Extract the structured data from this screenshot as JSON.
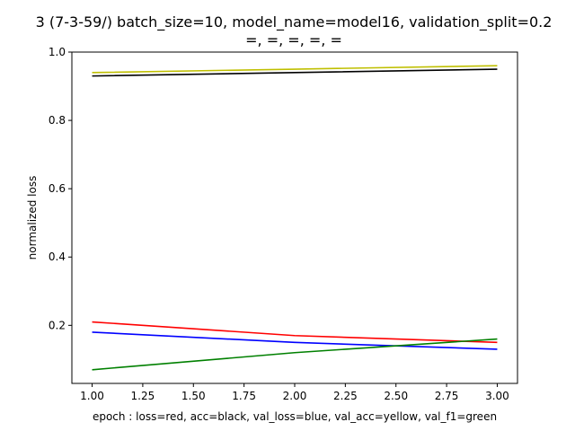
{
  "chart_data": {
    "type": "line",
    "title": "3 (7-3-59/) batch_size=10, model_name=model16, validation_split=0.2",
    "subtitle": "=, =, =, =, =",
    "xlabel": "epoch : loss=red, acc=black, val_loss=blue, val_acc=yellow, val_f1=green",
    "ylabel": "normalized loss",
    "xlim": [
      0.9,
      3.1
    ],
    "ylim": [
      0.03,
      1.0
    ],
    "x_ticks": [
      "1.00",
      "1.25",
      "1.50",
      "1.75",
      "2.00",
      "2.25",
      "2.50",
      "2.75",
      "3.00"
    ],
    "y_ticks": [
      "0.2",
      "0.4",
      "0.6",
      "0.8",
      "1.0"
    ],
    "grid": false,
    "x": [
      1,
      2,
      3
    ],
    "series": [
      {
        "key": "loss",
        "color": "#ff0000",
        "values": [
          0.21,
          0.17,
          0.15
        ]
      },
      {
        "key": "acc",
        "color": "#000000",
        "values": [
          0.93,
          0.94,
          0.95
        ]
      },
      {
        "key": "val_loss",
        "color": "#0000ff",
        "values": [
          0.18,
          0.15,
          0.13
        ]
      },
      {
        "key": "val_acc",
        "color": "#bfbf00",
        "values": [
          0.94,
          0.95,
          0.96
        ]
      },
      {
        "key": "val_f1",
        "color": "#008000",
        "values": [
          0.07,
          0.12,
          0.16
        ]
      }
    ]
  }
}
